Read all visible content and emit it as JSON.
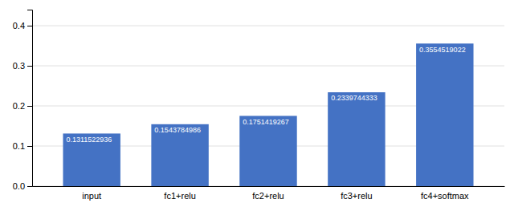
{
  "chart_data": {
    "type": "bar",
    "categories": [
      "input",
      "fc1+relu",
      "fc2+relu",
      "fc3+relu",
      "fc4+softmax"
    ],
    "values": [
      0.1311522936,
      0.1543784986,
      0.1751419267,
      0.2339744333,
      0.3554519022
    ],
    "color": "#4472c4",
    "ylim": [
      0,
      0.44
    ],
    "yticks": [
      {
        "value": 0,
        "label": "0.0"
      },
      0.1,
      0.2,
      0.3,
      0.4
    ],
    "grid": true,
    "data_labels": true
  }
}
